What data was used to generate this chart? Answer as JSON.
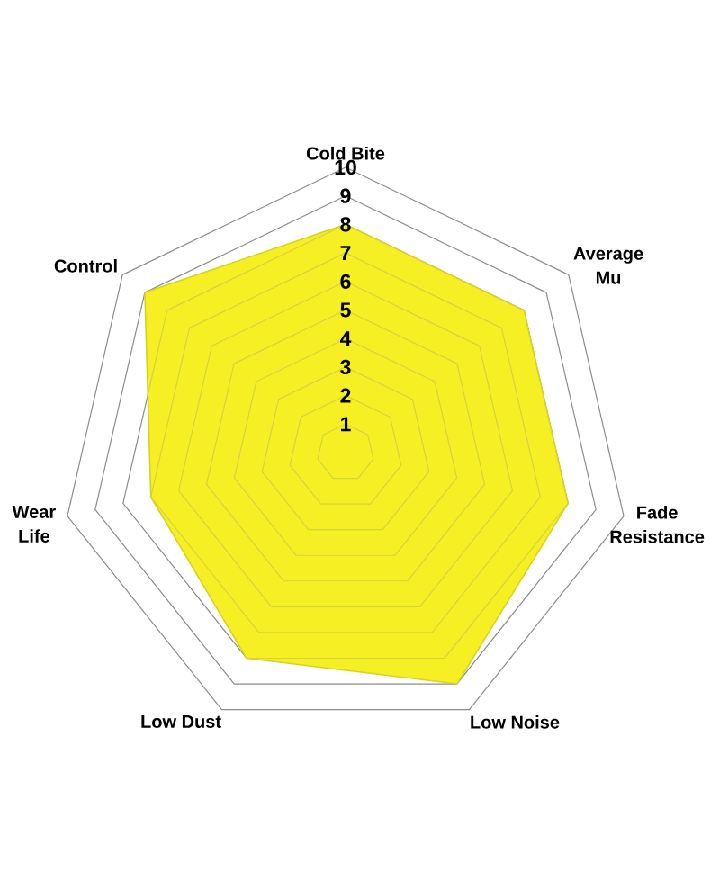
{
  "chart_data": {
    "type": "radar",
    "categories": [
      "Cold Bite",
      "Average Mu",
      "Fade Resistance",
      "Low Noise",
      "Low Dust",
      "Wear Life",
      "Control"
    ],
    "values": [
      8,
      8,
      8,
      9,
      8,
      7,
      9
    ],
    "color": "#f5ef23",
    "ylim": [
      0,
      10
    ],
    "yticks": [
      1,
      2,
      3,
      4,
      5,
      6,
      7,
      8,
      9,
      10
    ],
    "grid": true
  }
}
